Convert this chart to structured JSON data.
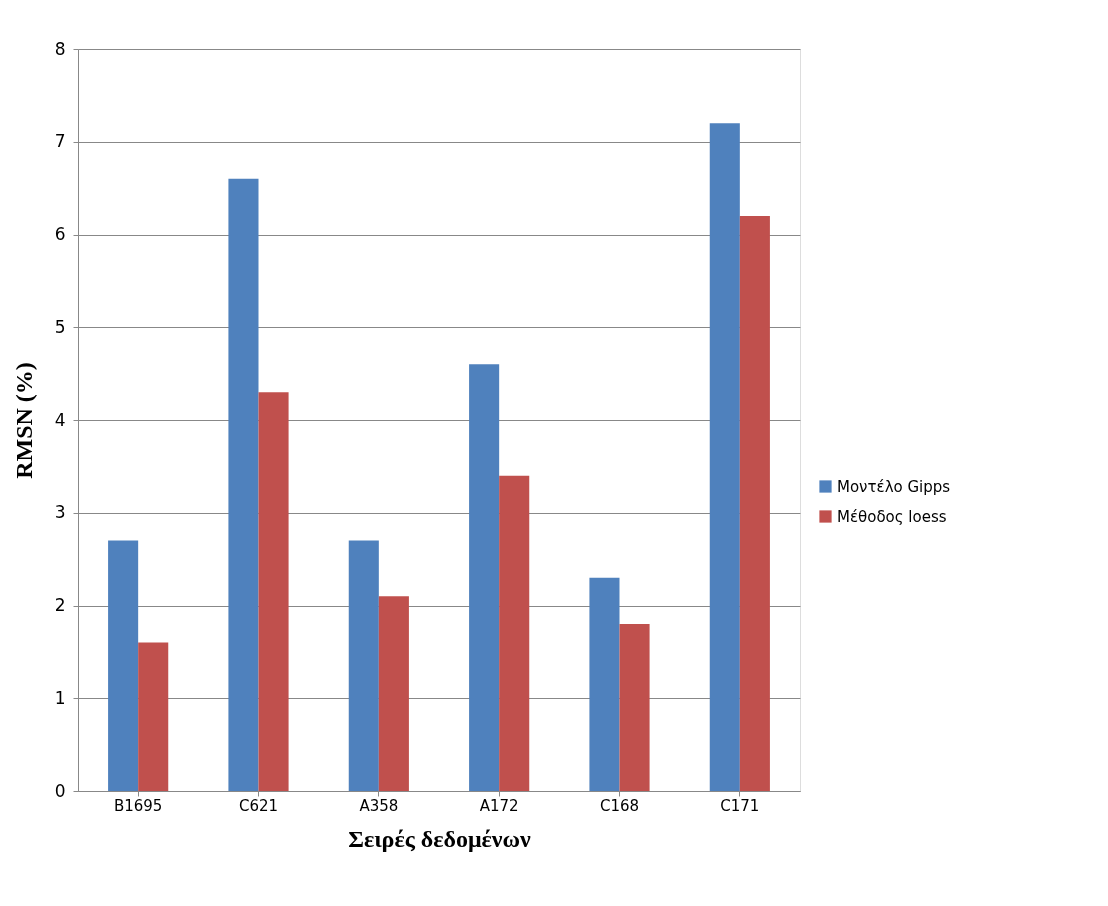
{
  "chart_data": {
    "type": "bar",
    "xlabel": "Σειρές δεδομένων",
    "ylabel": "RMSN (%)",
    "categories": [
      "B1695",
      "C621",
      "A358",
      "A172",
      "C168",
      "C171"
    ],
    "series": [
      {
        "name": "Μοντέλο Gipps",
        "color": "#4f81bd",
        "values": [
          2.7,
          6.6,
          2.7,
          4.6,
          2.3,
          7.2
        ]
      },
      {
        "name": "Μέθοδος loess",
        "color": "#c0504d",
        "values": [
          1.6,
          4.3,
          2.1,
          3.4,
          1.8,
          6.2
        ]
      }
    ],
    "ylim": [
      0,
      8
    ],
    "yticks": [
      0,
      1,
      2,
      3,
      4,
      5,
      6,
      7,
      8
    ],
    "grid": "y",
    "legend": "right"
  }
}
